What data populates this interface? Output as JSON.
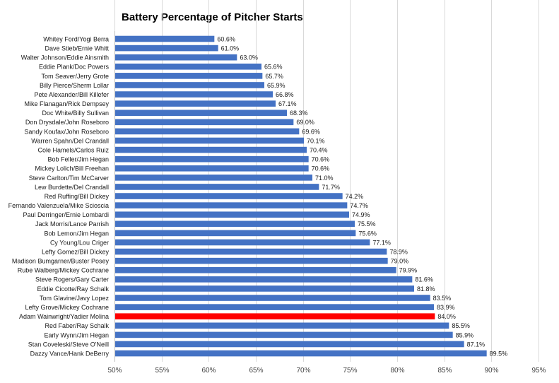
{
  "chart_data": {
    "type": "bar",
    "orientation": "horizontal",
    "title": "Battery Percentage of Pitcher Starts",
    "xlabel": "",
    "ylabel": "",
    "xlim": [
      50,
      95
    ],
    "x_ticks": [
      "50%",
      "55%",
      "60%",
      "65%",
      "70%",
      "75%",
      "80%",
      "85%",
      "90%",
      "95%"
    ],
    "grid": "vertical",
    "bar_color": "#4472C4",
    "highlight_color": "#FF0000",
    "highlight_category": "Adam Wainwright/Yadier Molina",
    "categories": [
      "Whitey Ford/Yogi Berra",
      "Dave Stieb/Ernie Whitt",
      "Walter Johnson/Eddie Ainsmith",
      "Eddie Plank/Doc Powers",
      "Tom Seaver/Jerry Grote",
      "Billy Pierce/Sherm Lollar",
      "Pete Alexander/Bill Killefer",
      "Mike Flanagan/Rick Dempsey",
      "Doc White/Billy Sullivan",
      "Don Drysdale/John Roseboro",
      "Sandy Koufax/John Roseboro",
      "Warren Spahn/Del Crandall",
      "Cole Hamels/Carlos Ruiz",
      "Bob Feller/Jim Hegan",
      "Mickey Lolich/Bill Freehan",
      "Steve Carlton/Tim McCarver",
      "Lew Burdette/Del Crandall",
      "Red Ruffing/Bill Dickey",
      "Fernando Valenzuela/Mike Scioscia",
      "Paul Derringer/Ernie Lombardi",
      "Jack Morris/Lance Parrish",
      "Bob Lemon/Jim Hegan",
      "Cy Young/Lou Criger",
      "Lefty Gomez/Bill Dickey",
      "Madison Bumgarner/Buster Posey",
      "Rube Walberg/Mickey Cochrane",
      "Steve Rogers/Gary Carter",
      "Eddie Cicotte/Ray Schalk",
      "Tom Glavine/Javy Lopez",
      "Lefty Grove/Mickey Cochrane",
      "Adam Wainwright/Yadier Molina",
      "Red Faber/Ray Schalk",
      "Early Wynn/Jim Hegan",
      "Stan Coveleski/Steve O'Neill",
      "Dazzy Vance/Hank DeBerry"
    ],
    "values": [
      60.6,
      61.0,
      63.0,
      65.6,
      65.7,
      65.9,
      66.8,
      67.1,
      68.3,
      69.0,
      69.6,
      70.1,
      70.4,
      70.6,
      70.6,
      71.0,
      71.7,
      74.2,
      74.7,
      74.9,
      75.5,
      75.6,
      77.1,
      78.9,
      79.0,
      79.9,
      81.6,
      81.8,
      83.5,
      83.9,
      84.0,
      85.5,
      85.9,
      87.1,
      89.5
    ],
    "data_labels": [
      "60.6%",
      "61.0%",
      "63.0%",
      "65.6%",
      "65.7%",
      "65.9%",
      "66.8%",
      "67.1%",
      "68.3%",
      "69.0%",
      "69.6%",
      "70.1%",
      "70.4%",
      "70.6%",
      "70.6%",
      "71.0%",
      "71.7%",
      "74.2%",
      "74.7%",
      "74.9%",
      "75.5%",
      "75.6%",
      "77.1%",
      "78.9%",
      "79.0%",
      "79.9%",
      "81.6%",
      "81.8%",
      "83.5%",
      "83.9%",
      "84.0%",
      "85.5%",
      "85.9%",
      "87.1%",
      "89.5%"
    ]
  }
}
